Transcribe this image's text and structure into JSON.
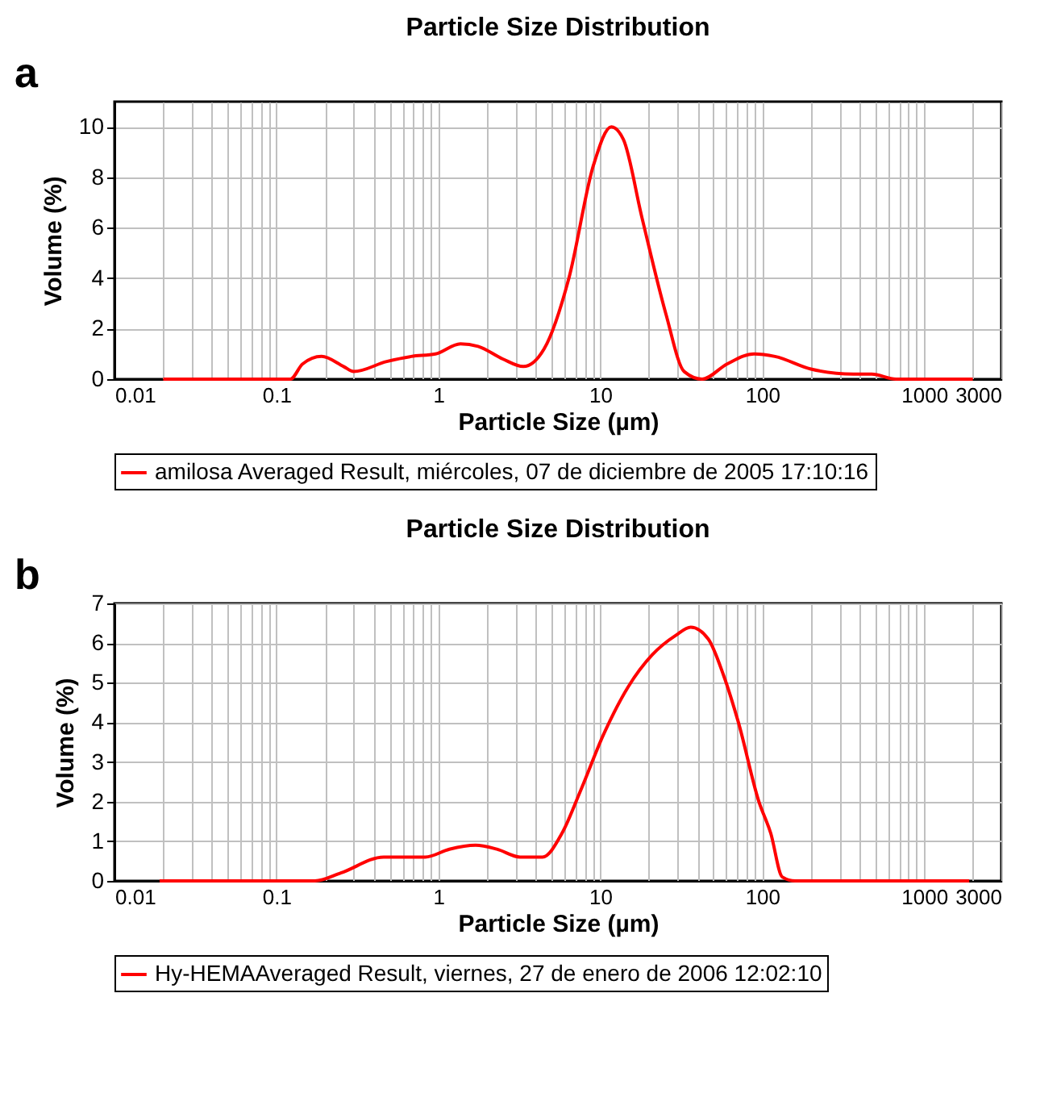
{
  "chart_data": [
    {
      "type": "line",
      "title": "Particle Size Distribution",
      "xlabel": "Particle Size (µm)",
      "ylabel": "Volume (%)",
      "annotations": [
        "a"
      ],
      "log": "x",
      "xlim": [
        0.01,
        3000
      ],
      "ylim": [
        0,
        11
      ],
      "yticks": [
        0,
        2,
        4,
        6,
        8,
        10
      ],
      "xticks": [
        0.01,
        {
          "value": 0.02,
          "label": null
        },
        {
          "value": 0.03,
          "label": null
        },
        {
          "value": 0.04,
          "label": null
        },
        {
          "value": 0.05,
          "label": null
        },
        {
          "value": 0.06,
          "label": null
        },
        {
          "value": 0.07,
          "label": null
        },
        {
          "value": 0.08,
          "label": null
        },
        {
          "value": 0.09,
          "label": null
        },
        0.1,
        {
          "value": 0.2,
          "label": null
        },
        {
          "value": 0.3,
          "label": null
        },
        {
          "value": 0.4,
          "label": null
        },
        {
          "value": 0.5,
          "label": null
        },
        {
          "value": 0.6,
          "label": null
        },
        {
          "value": 0.7,
          "label": null
        },
        {
          "value": 0.8,
          "label": null
        },
        {
          "value": 0.9,
          "label": null
        },
        1,
        {
          "value": 2,
          "label": null
        },
        {
          "value": 3,
          "label": null
        },
        {
          "value": 4,
          "label": null
        },
        {
          "value": 5,
          "label": null
        },
        {
          "value": 6,
          "label": null
        },
        {
          "value": 7,
          "label": null
        },
        {
          "value": 8,
          "label": null
        },
        {
          "value": 9,
          "label": null
        },
        10,
        {
          "value": 20,
          "label": null
        },
        {
          "value": 30,
          "label": null
        },
        {
          "value": 40,
          "label": null
        },
        {
          "value": 50,
          "label": null
        },
        {
          "value": 60,
          "label": null
        },
        {
          "value": 70,
          "label": null
        },
        {
          "value": 80,
          "label": null
        },
        {
          "value": 90,
          "label": null
        },
        100,
        {
          "value": 200,
          "label": null
        },
        {
          "value": 300,
          "label": null
        },
        {
          "value": 400,
          "label": null
        },
        {
          "value": 500,
          "label": null
        },
        {
          "value": 600,
          "label": null
        },
        {
          "value": 700,
          "label": null
        },
        {
          "value": 800,
          "label": null
        },
        {
          "value": 900,
          "label": null
        },
        1000,
        {
          "value": 2000,
          "label": null
        },
        3000
      ],
      "grid": true,
      "legend": "bottom",
      "marker": "none",
      "line_style": "solid",
      "series": [
        {
          "name": "amilosa Averaged Result, miércoles, 07 de diciembre de 2005 17:10:16",
          "color": "#ff0000",
          "x": [
            0.02,
            0.122,
            0.145,
            0.19,
            0.26,
            0.3,
            0.48,
            0.68,
            0.96,
            1.37,
            1.76,
            2.5,
            3.35,
            4.5,
            6.4,
            9.1,
            11.7,
            13.9,
            18.1,
            25.4,
            33,
            42.6,
            60.7,
            89,
            120,
            200,
            367,
            475,
            670,
            2000
          ],
          "values": [
            0,
            0,
            0.6,
            0.9,
            0.5,
            0.3,
            0.7,
            0.9,
            1.0,
            1.4,
            1.3,
            0.8,
            0.5,
            1.2,
            4.0,
            8.5,
            10.0,
            9.5,
            6.4,
            2.6,
            0.3,
            0,
            0.6,
            1.0,
            0.9,
            0.4,
            0.2,
            0.2,
            0,
            0
          ]
        }
      ]
    },
    {
      "type": "line",
      "title": "Particle Size Distribution",
      "xlabel": "Particle Size (µm)",
      "ylabel": "Volume (%)",
      "annotations": [
        "b"
      ],
      "log": "x",
      "xlim": [
        0.01,
        3000
      ],
      "ylim": [
        0,
        7
      ],
      "yticks": [
        0,
        1,
        2,
        3,
        4,
        5,
        6,
        7
      ],
      "xticks": [
        0.01,
        {
          "value": 0.02,
          "label": null
        },
        {
          "value": 0.03,
          "label": null
        },
        {
          "value": 0.04,
          "label": null
        },
        {
          "value": 0.05,
          "label": null
        },
        {
          "value": 0.06,
          "label": null
        },
        {
          "value": 0.07,
          "label": null
        },
        {
          "value": 0.08,
          "label": null
        },
        {
          "value": 0.09,
          "label": null
        },
        0.1,
        {
          "value": 0.2,
          "label": null
        },
        {
          "value": 0.3,
          "label": null
        },
        {
          "value": 0.4,
          "label": null
        },
        {
          "value": 0.5,
          "label": null
        },
        {
          "value": 0.6,
          "label": null
        },
        {
          "value": 0.7,
          "label": null
        },
        {
          "value": 0.8,
          "label": null
        },
        {
          "value": 0.9,
          "label": null
        },
        1,
        {
          "value": 2,
          "label": null
        },
        {
          "value": 3,
          "label": null
        },
        {
          "value": 4,
          "label": null
        },
        {
          "value": 5,
          "label": null
        },
        {
          "value": 6,
          "label": null
        },
        {
          "value": 7,
          "label": null
        },
        {
          "value": 8,
          "label": null
        },
        {
          "value": 9,
          "label": null
        },
        10,
        {
          "value": 20,
          "label": null
        },
        {
          "value": 30,
          "label": null
        },
        {
          "value": 40,
          "label": null
        },
        {
          "value": 50,
          "label": null
        },
        {
          "value": 60,
          "label": null
        },
        {
          "value": 70,
          "label": null
        },
        {
          "value": 80,
          "label": null
        },
        {
          "value": 90,
          "label": null
        },
        100,
        {
          "value": 200,
          "label": null
        },
        {
          "value": 300,
          "label": null
        },
        {
          "value": 400,
          "label": null
        },
        {
          "value": 500,
          "label": null
        },
        {
          "value": 600,
          "label": null
        },
        {
          "value": 700,
          "label": null
        },
        {
          "value": 800,
          "label": null
        },
        {
          "value": 900,
          "label": null
        },
        1000,
        {
          "value": 2000,
          "label": null
        },
        3000
      ],
      "grid": true,
      "legend": "bottom",
      "marker": "none",
      "line_style": "solid",
      "series": [
        {
          "name": "Hy-HEMAAveraged Result, viernes, 27 de enero de 2006 12:02:10",
          "color": "#ff0000",
          "x": [
            0.019,
            0.173,
            0.25,
            0.46,
            0.83,
            1.17,
            1.7,
            2.3,
            3.2,
            4.4,
            5.8,
            7.6,
            10.5,
            14.9,
            20.9,
            29.4,
            36.2,
            46.5,
            57.6,
            71.3,
            95.4,
            113,
            133,
            160,
            1900
          ],
          "values": [
            0,
            0,
            0.2,
            0.6,
            0.6,
            0.8,
            0.9,
            0.8,
            0.6,
            0.6,
            1.2,
            2.3,
            3.7,
            4.9,
            5.7,
            6.2,
            6.4,
            6.1,
            5.2,
            4.0,
            2.0,
            1.2,
            0.1,
            0,
            0
          ]
        }
      ]
    }
  ]
}
